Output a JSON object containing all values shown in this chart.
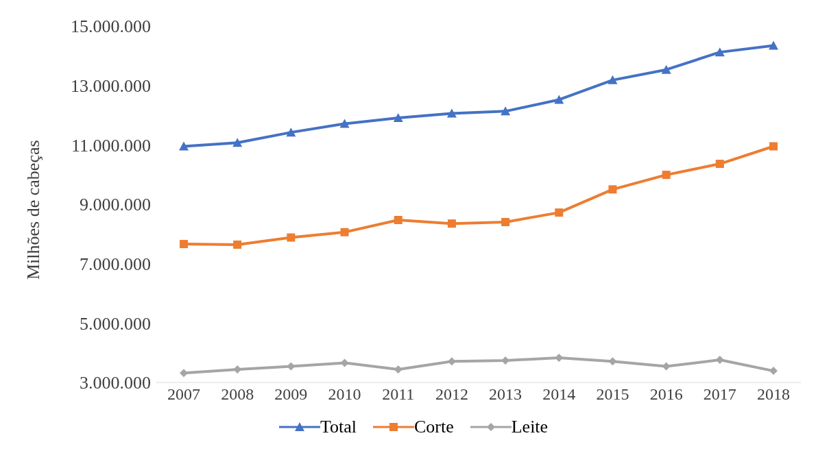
{
  "chart_data": {
    "type": "line",
    "ylabel": "Milhões de cabeças",
    "categories": [
      "2007",
      "2008",
      "2009",
      "2010",
      "2011",
      "2012",
      "2013",
      "2014",
      "2015",
      "2016",
      "2017",
      "2018"
    ],
    "series": [
      {
        "name": "Total",
        "color": "#4472c4",
        "marker": "triangle",
        "values": [
          10950000,
          11070000,
          11420000,
          11710000,
          11910000,
          12060000,
          12130000,
          12520000,
          13180000,
          13530000,
          14120000,
          14340000
        ]
      },
      {
        "name": "Corte",
        "color": "#ed7d31",
        "marker": "square",
        "values": [
          7660000,
          7640000,
          7880000,
          8060000,
          8470000,
          8350000,
          8400000,
          8720000,
          9500000,
          9990000,
          10360000,
          10950000
        ]
      },
      {
        "name": "Leite",
        "color": "#a5a5a5",
        "marker": "diamond",
        "values": [
          3320000,
          3440000,
          3540000,
          3660000,
          3440000,
          3710000,
          3740000,
          3830000,
          3710000,
          3540000,
          3760000,
          3390000
        ]
      }
    ],
    "ylim": [
      3000000,
      15000000
    ],
    "yticks": [
      {
        "value": 3000000,
        "label": "3.000.000"
      },
      {
        "value": 5000000,
        "label": "5.000.000"
      },
      {
        "value": 7000000,
        "label": "7.000.000"
      },
      {
        "value": 9000000,
        "label": "9.000.000"
      },
      {
        "value": 11000000,
        "label": "11.000.000"
      },
      {
        "value": 13000000,
        "label": "13.000.000"
      },
      {
        "value": 15000000,
        "label": "15.000.000"
      }
    ],
    "grid": false,
    "legend": "bottom",
    "line_style": "solid"
  }
}
